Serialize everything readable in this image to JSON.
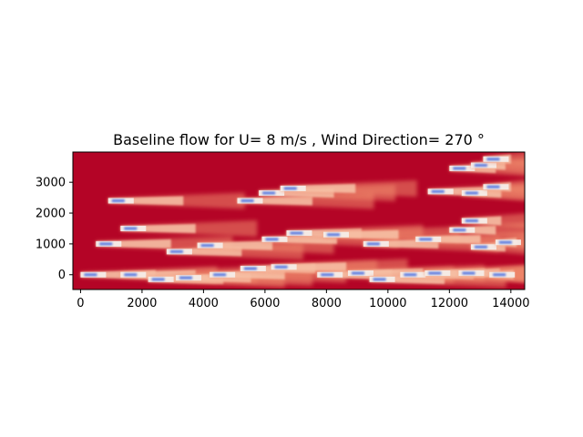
{
  "chart_data": {
    "type": "heatmap",
    "title": "Baseline flow for U= 8 m/s  ,  Wind Direction= 270  °",
    "xlabel": "",
    "ylabel": "",
    "xlim": [
      -250,
      14450
    ],
    "ylim": [
      -480,
      3980
    ],
    "xticks": [
      0,
      2000,
      4000,
      6000,
      8000,
      10000,
      12000,
      14000
    ],
    "xtick_labels": [
      "0",
      "2000",
      "4000",
      "6000",
      "8000",
      "10000",
      "12000",
      "14000"
    ],
    "yticks": [
      0,
      1000,
      2000,
      3000
    ],
    "ytick_labels": [
      "0",
      "1000",
      "2000",
      "3000"
    ],
    "colormap": "coolwarm",
    "background_color": "#b40426",
    "wake_core_color": "#4a6ee0",
    "freestream_speed": 8,
    "wind_direction": 270,
    "turbines": [
      {
        "x": 0,
        "y": 0
      },
      {
        "x": 1300,
        "y": 0
      },
      {
        "x": 2200,
        "y": -150
      },
      {
        "x": 3100,
        "y": -100
      },
      {
        "x": 4200,
        "y": 0
      },
      {
        "x": 5200,
        "y": 200
      },
      {
        "x": 6200,
        "y": 250
      },
      {
        "x": 7700,
        "y": 0
      },
      {
        "x": 8700,
        "y": 50
      },
      {
        "x": 9400,
        "y": -150
      },
      {
        "x": 10400,
        "y": 0
      },
      {
        "x": 11200,
        "y": 50
      },
      {
        "x": 12300,
        "y": 50
      },
      {
        "x": 13300,
        "y": 0
      },
      {
        "x": 500,
        "y": 1000
      },
      {
        "x": 1300,
        "y": 1500
      },
      {
        "x": 2800,
        "y": 750
      },
      {
        "x": 3800,
        "y": 950
      },
      {
        "x": 5900,
        "y": 1150
      },
      {
        "x": 6700,
        "y": 1350
      },
      {
        "x": 7900,
        "y": 1300
      },
      {
        "x": 9200,
        "y": 1000
      },
      {
        "x": 10900,
        "y": 1150
      },
      {
        "x": 12000,
        "y": 1450
      },
      {
        "x": 12700,
        "y": 900
      },
      {
        "x": 13500,
        "y": 1050
      },
      {
        "x": 12400,
        "y": 1750
      },
      {
        "x": 900,
        "y": 2400
      },
      {
        "x": 5100,
        "y": 2400
      },
      {
        "x": 5800,
        "y": 2650
      },
      {
        "x": 6500,
        "y": 2800
      },
      {
        "x": 11300,
        "y": 2700
      },
      {
        "x": 12400,
        "y": 2650
      },
      {
        "x": 13100,
        "y": 2850
      },
      {
        "x": 12000,
        "y": 3450
      },
      {
        "x": 12700,
        "y": 3550
      },
      {
        "x": 13100,
        "y": 3750
      }
    ]
  }
}
